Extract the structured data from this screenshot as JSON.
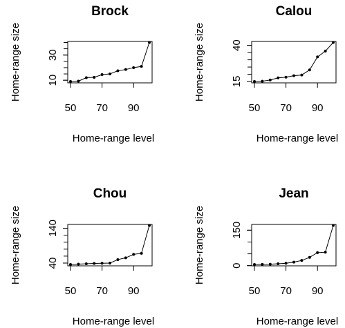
{
  "chart_data": [
    {
      "type": "line",
      "title": "Brock",
      "xlabel": "Home-range level",
      "ylabel": "Home-range size",
      "x": [
        50,
        55,
        60,
        65,
        70,
        75,
        80,
        85,
        90,
        95,
        100
      ],
      "values": [
        9,
        9.3,
        12,
        12.3,
        14.5,
        15,
        17.5,
        18.5,
        20,
        21,
        40
      ],
      "xlim": [
        50,
        100
      ],
      "ylim": [
        9,
        40
      ],
      "xticks": [
        50,
        70,
        90
      ],
      "yticks": [
        10,
        30
      ],
      "yminor": [
        10,
        15,
        20,
        25,
        30,
        35,
        40
      ],
      "grid": false
    },
    {
      "type": "line",
      "title": "Calou",
      "xlabel": "Home-range level",
      "ylabel": "Home-range size",
      "x": [
        50,
        55,
        60,
        65,
        70,
        75,
        80,
        85,
        90,
        95,
        100
      ],
      "values": [
        15,
        15.2,
        16,
        17.5,
        18,
        19,
        19.5,
        23,
        32,
        36,
        42
      ],
      "xlim": [
        50,
        100
      ],
      "ylim": [
        15,
        42
      ],
      "xticks": [
        50,
        70,
        90
      ],
      "yticks": [
        15,
        40
      ],
      "yminor": [
        15,
        20,
        25,
        30,
        35,
        40
      ],
      "grid": false
    },
    {
      "type": "line",
      "title": "Chou",
      "xlabel": "Home-range level",
      "ylabel": "Home-range size",
      "x": [
        50,
        55,
        60,
        65,
        70,
        75,
        80,
        85,
        90,
        95,
        100
      ],
      "values": [
        36,
        37,
        38,
        39,
        39.5,
        40,
        50,
        55,
        65,
        68,
        148
      ],
      "xlim": [
        50,
        100
      ],
      "ylim": [
        36,
        148
      ],
      "xticks": [
        50,
        70,
        90
      ],
      "yticks": [
        40,
        140
      ],
      "yminor": [
        40,
        60,
        80,
        100,
        120,
        140
      ],
      "grid": false
    },
    {
      "type": "line",
      "title": "Jean",
      "xlabel": "Home-range level",
      "ylabel": "Home-range size",
      "x": [
        50,
        55,
        60,
        65,
        70,
        75,
        80,
        85,
        90,
        95,
        100
      ],
      "values": [
        5,
        5.5,
        6,
        8,
        10,
        15,
        22,
        35,
        55,
        57,
        170
      ],
      "xlim": [
        50,
        100
      ],
      "ylim": [
        5,
        170
      ],
      "xticks": [
        50,
        70,
        90
      ],
      "yticks": [
        0,
        150
      ],
      "yminor": [
        0,
        50,
        100,
        150
      ],
      "grid": false
    }
  ]
}
